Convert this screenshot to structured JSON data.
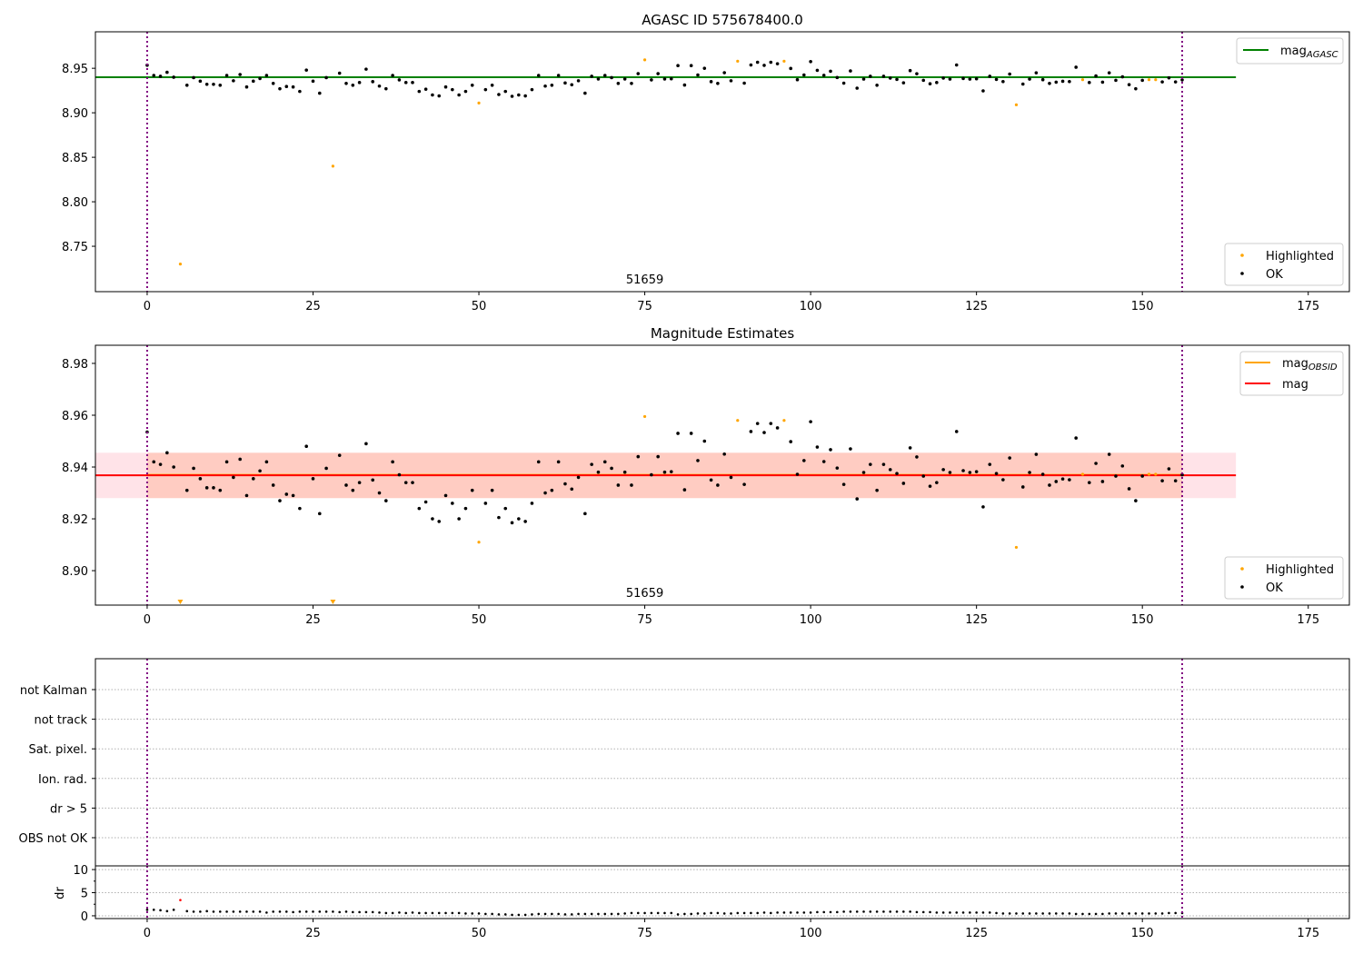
{
  "series": {
    "x_start": 0,
    "mag": [
      8.9535,
      8.942,
      8.941,
      8.9455,
      8.94,
      8.73,
      8.931,
      8.9395,
      8.9355,
      8.932,
      8.932,
      8.931,
      8.942,
      8.936,
      8.943,
      8.929,
      8.9355,
      8.9385,
      8.942,
      8.933,
      8.927,
      8.9295,
      8.929,
      8.924,
      8.948,
      8.9355,
      8.922,
      8.9395,
      8.84,
      8.9445,
      8.933,
      8.931,
      8.934,
      8.949,
      8.935,
      8.93,
      8.927,
      8.942,
      8.937,
      8.934,
      8.934,
      8.924,
      8.9265,
      8.92,
      8.919,
      8.929,
      8.926,
      8.92,
      8.924,
      8.931,
      8.911,
      8.926,
      8.931,
      8.9205,
      8.924,
      8.9185,
      8.92,
      8.919,
      8.926,
      8.942,
      8.93,
      8.931,
      8.942,
      8.9335,
      8.9315,
      8.936,
      8.922,
      8.941,
      8.938,
      8.942,
      8.9395,
      8.933,
      8.938,
      8.933,
      8.944,
      8.9595,
      8.937,
      8.944,
      8.938,
      8.9382,
      8.953,
      8.9312,
      8.953,
      8.9425,
      8.95,
      8.935,
      8.933,
      8.945,
      8.936,
      8.958,
      8.9333,
      8.9537,
      8.9568,
      8.9533,
      8.9568,
      8.9551,
      8.958,
      8.9498,
      8.9372,
      8.9425,
      8.9575,
      8.9477,
      8.9421,
      8.9467,
      8.9396,
      8.9333,
      8.947,
      8.9277,
      8.9379,
      8.941,
      8.931,
      8.941,
      8.939,
      8.9375,
      8.9337,
      8.9474,
      8.9439,
      8.9365,
      8.9326,
      8.934,
      8.939,
      8.9379,
      8.9537,
      8.9386,
      8.9379,
      8.9382,
      8.9246,
      8.941,
      8.9375,
      8.9351,
      8.9435,
      8.909,
      8.9323,
      8.9379,
      8.9449,
      8.9372,
      8.933,
      8.9344,
      8.9354,
      8.9351,
      8.9512,
      8.9372,
      8.934,
      8.9414,
      8.9344,
      8.9449,
      8.9365,
      8.9404,
      8.9316,
      8.927,
      8.9365,
      8.9372,
      8.9372,
      8.9347,
      8.9393,
      8.9347,
      8.937
    ],
    "dr": [
      1.3,
      1.3,
      1.2,
      1.0,
      1.3,
      3.4,
      1.0,
      0.9,
      0.9,
      1.0,
      0.9,
      0.9,
      0.9,
      0.9,
      0.9,
      0.9,
      0.9,
      0.9,
      0.7,
      0.9,
      0.9,
      0.9,
      0.8,
      0.9,
      0.9,
      0.9,
      0.9,
      0.9,
      0.9,
      0.8,
      0.9,
      0.8,
      0.8,
      0.8,
      0.8,
      0.7,
      0.6,
      0.6,
      0.7,
      0.6,
      0.7,
      0.6,
      0.6,
      0.6,
      0.6,
      0.6,
      0.6,
      0.6,
      0.5,
      0.5,
      0.5,
      0.4,
      0.4,
      0.3,
      0.3,
      0.2,
      0.2,
      0.2,
      0.3,
      0.4,
      0.4,
      0.4,
      0.4,
      0.3,
      0.3,
      0.4,
      0.4,
      0.4,
      0.4,
      0.4,
      0.4,
      0.4,
      0.5,
      0.6,
      0.6,
      0.6,
      0.6,
      0.6,
      0.6,
      0.6,
      0.3,
      0.4,
      0.4,
      0.5,
      0.5,
      0.6,
      0.6,
      0.5,
      0.5,
      0.6,
      0.6,
      0.6,
      0.6,
      0.7,
      0.6,
      0.7,
      0.7,
      0.7,
      0.7,
      0.7,
      0.7,
      0.8,
      0.8,
      0.8,
      0.8,
      0.9,
      0.9,
      0.9,
      0.9,
      0.9,
      0.9,
      0.9,
      0.9,
      0.9,
      0.9,
      0.9,
      0.8,
      0.8,
      0.8,
      0.7,
      0.7,
      0.7,
      0.7,
      0.7,
      0.7,
      0.7,
      0.7,
      0.7,
      0.6,
      0.5,
      0.5,
      0.5,
      0.5,
      0.5,
      0.5,
      0.5,
      0.5,
      0.5,
      0.5,
      0.5,
      0.4,
      0.4,
      0.4,
      0.4,
      0.4,
      0.5,
      0.5,
      0.5,
      0.5,
      0.5,
      0.5,
      0.5,
      0.5,
      0.5,
      0.6,
      0.6,
      0.6
    ],
    "highlighted_indices": [
      5,
      28,
      50,
      75,
      89,
      96,
      131,
      141,
      151,
      152
    ],
    "dr_highlight_indices": [
      5
    ]
  },
  "colors": {
    "ok": "#000000",
    "highlighted": "#ffa500",
    "mag_agasc": "#008000",
    "mag_obsid": "#ffa500",
    "mag": "#ff0000",
    "vline": "#800080",
    "dr_highlight": "#ff0000",
    "band_obsid": "#ffa07a",
    "band_mag": "#ffc0cb"
  },
  "chart_data": [
    {
      "type": "scatter",
      "title": "AGASC ID 575678400.0",
      "xlim": [
        -7.8,
        181.2
      ],
      "ylim": [
        8.699,
        8.991
      ],
      "xticks": [
        0,
        25,
        50,
        75,
        100,
        125,
        150,
        175
      ],
      "xtick_labels": [
        "0",
        "25",
        "50",
        "75",
        "100",
        "125",
        "150",
        "175"
      ],
      "yticks": [
        8.75,
        8.8,
        8.85,
        8.9,
        8.95
      ],
      "ytick_labels": [
        "8.75",
        "8.80",
        "8.85",
        "8.90",
        "8.95"
      ],
      "annotation": {
        "text": "51659",
        "x": 75
      },
      "hline": {
        "label": "mag",
        "sub": "AGASC",
        "value": 8.94,
        "x_range": [
          -7.8,
          164.1
        ]
      },
      "vlines": [
        0,
        156
      ],
      "legend_lines": [
        {
          "label": "mag",
          "sub": "AGASC"
        }
      ],
      "legend_points": [
        {
          "label": "Highlighted"
        },
        {
          "label": "OK"
        }
      ],
      "legend_placement": "top-right / bottom-right"
    },
    {
      "type": "scatter",
      "title": "Magnitude Estimates",
      "xlim": [
        -7.8,
        181.2
      ],
      "ylim": [
        8.8867,
        8.987
      ],
      "xticks": [
        0,
        25,
        50,
        75,
        100,
        125,
        150,
        175
      ],
      "xtick_labels": [
        "0",
        "25",
        "50",
        "75",
        "100",
        "125",
        "150",
        "175"
      ],
      "yticks": [
        8.9,
        8.92,
        8.94,
        8.96,
        8.98
      ],
      "ytick_labels": [
        "8.90",
        "8.92",
        "8.94",
        "8.96",
        "8.98"
      ],
      "annotation": {
        "text": "51659",
        "x": 75
      },
      "mag_obsid": {
        "value": 8.937,
        "band": [
          8.928,
          8.9455
        ],
        "x_range": [
          0,
          156
        ]
      },
      "mag": {
        "value": 8.9368,
        "band": [
          8.928,
          8.9455
        ],
        "x_range": [
          -7.8,
          164.1
        ]
      },
      "vlines": [
        0,
        156
      ],
      "legend_lines": [
        {
          "label": "mag",
          "sub": "OBSID"
        },
        {
          "label": "mag",
          "sub": ""
        }
      ],
      "legend_points": [
        {
          "label": "Highlighted"
        },
        {
          "label": "OK"
        }
      ]
    },
    {
      "type": "table",
      "categories": [
        "OBS not OK",
        "dr > 5",
        "Ion. rad.",
        "Sat. pixel.",
        "not track",
        "not Kalman"
      ],
      "xlim": [
        -7.8,
        181.2
      ],
      "vlines": [
        0,
        156
      ]
    },
    {
      "type": "scatter",
      "ylabel": "dr",
      "xlim": [
        -7.8,
        181.2
      ],
      "ylim": [
        -0.6,
        10.8
      ],
      "xticks": [
        0,
        25,
        50,
        75,
        100,
        125,
        150,
        175
      ],
      "xtick_labels": [
        "0",
        "25",
        "50",
        "75",
        "100",
        "125",
        "150",
        "175"
      ],
      "yticks": [
        0,
        5,
        10
      ],
      "ytick_labels": [
        "0",
        "5",
        "10"
      ],
      "vlines": [
        0,
        156
      ]
    }
  ]
}
